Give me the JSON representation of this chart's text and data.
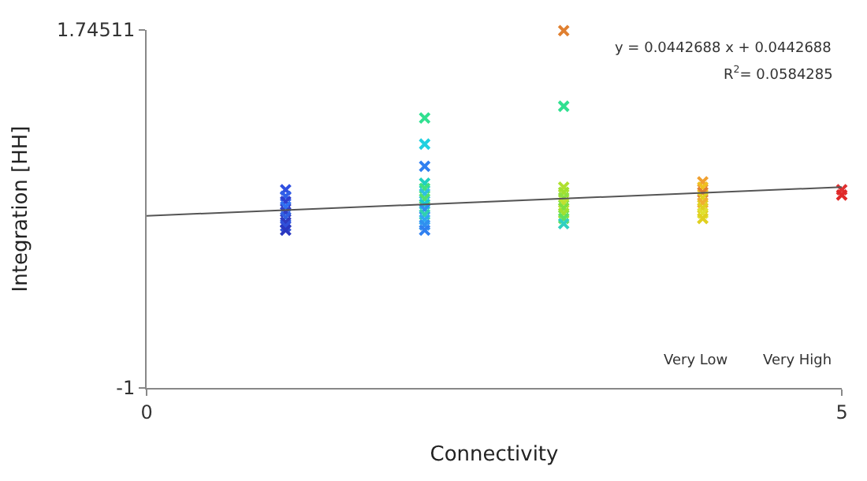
{
  "chart_data": {
    "type": "scatter",
    "xlabel": "Connectivity",
    "ylabel": "Integration [HH]",
    "xlim": [
      0,
      5
    ],
    "xticks": [
      0,
      5
    ],
    "ylim": [
      -1,
      1.74511
    ],
    "yticks": [
      -1,
      1.74511
    ],
    "legend": false,
    "marker": "cross",
    "series": [
      {
        "x": [
          1,
          1,
          1,
          1,
          1,
          1,
          1,
          1,
          1,
          2,
          2,
          2,
          2,
          2,
          2,
          2,
          2,
          2,
          2,
          2,
          2,
          2,
          3,
          3,
          3,
          3,
          3,
          3,
          3,
          3,
          3,
          3,
          4,
          4,
          4,
          4,
          4,
          4,
          4,
          4,
          5,
          5
        ],
        "values": [
          0.52,
          0.47,
          0.43,
          0.39,
          0.35,
          0.31,
          0.27,
          0.24,
          0.21,
          1.07,
          0.87,
          0.7,
          0.57,
          0.53,
          0.49,
          0.45,
          0.41,
          0.37,
          0.33,
          0.29,
          0.25,
          0.21,
          1.74,
          1.16,
          0.54,
          0.5,
          0.46,
          0.42,
          0.38,
          0.34,
          0.3,
          0.26,
          0.58,
          0.54,
          0.5,
          0.46,
          0.42,
          0.38,
          0.34,
          0.3,
          0.52,
          0.48
        ],
        "colors": [
          "#3050e0",
          "#3060e8",
          "#2f40d0",
          "#3070f0",
          "#2f40c8",
          "#3060e0",
          "#2f3cc0",
          "#3050d8",
          "#2a38c0",
          "#30e090",
          "#20d0e0",
          "#3080f0",
          "#20d0c0",
          "#40e080",
          "#30c0e0",
          "#50e070",
          "#20c8d0",
          "#3090f0",
          "#30d0b0",
          "#30a8f0",
          "#3090f0",
          "#3080f0",
          "#e08030",
          "#30e090",
          "#b0e030",
          "#a0e030",
          "#90e040",
          "#c0e030",
          "#80e040",
          "#a0e030",
          "#60e060",
          "#30d0c0",
          "#f0a030",
          "#f0c020",
          "#e08030",
          "#e0d020",
          "#f0b030",
          "#e0d020",
          "#e0e030",
          "#e0d020",
          "#e03030",
          "#e02828"
        ]
      },
      {
        "type": "line",
        "x": [
          0,
          5
        ],
        "values": [
          0.32,
          0.54
        ],
        "color": "#555555",
        "marker": "none"
      }
    ],
    "annotations": [
      "y = 0.0442688 x + 0.0442688",
      "R$^{2}$= 0.0584285",
      "Very Low",
      "Very High"
    ]
  }
}
